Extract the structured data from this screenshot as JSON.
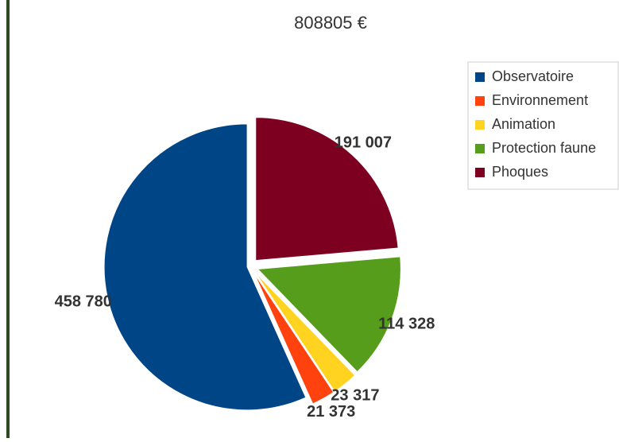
{
  "chart_data": {
    "type": "pie",
    "title": "808805 €",
    "categories": [
      "Observatoire",
      "Environnement",
      "Animation",
      "Protection faune",
      "Phoques"
    ],
    "values": [
      458780,
      21373,
      23317,
      114328,
      191007
    ],
    "value_labels": [
      "458 780",
      "21 373",
      "23 317",
      "114 328",
      "191 007"
    ],
    "colors": [
      "#004586",
      "#ff420e",
      "#ffd320",
      "#579d1c",
      "#7e0021"
    ],
    "legend": "top-right"
  }
}
